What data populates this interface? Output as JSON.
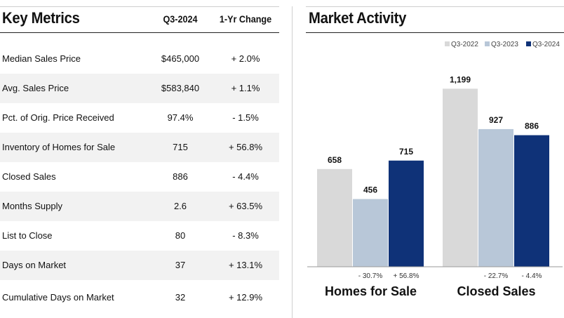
{
  "metrics": {
    "title": "Key Metrics",
    "col_period": "Q3-2024",
    "col_change": "1-Yr Change",
    "rows": [
      {
        "label": "Median Sales Price",
        "value": "$465,000",
        "change": "+ 2.0%"
      },
      {
        "label": "Avg. Sales Price",
        "value": "$583,840",
        "change": "+ 1.1%"
      },
      {
        "label": "Pct. of Orig. Price Received",
        "value": "97.4%",
        "change": "- 1.5%"
      },
      {
        "label": "Inventory of Homes for Sale",
        "value": "715",
        "change": "+ 56.8%"
      },
      {
        "label": "Closed Sales",
        "value": "886",
        "change": "- 4.4%"
      },
      {
        "label": "Months Supply",
        "value": "2.6",
        "change": "+ 63.5%"
      },
      {
        "label": "List to Close",
        "value": "80",
        "change": "- 8.3%"
      },
      {
        "label": "Days on Market",
        "value": "37",
        "change": "+ 13.1%"
      },
      {
        "label": "Cumulative Days on Market",
        "value": "32",
        "change": "+ 12.9%"
      }
    ]
  },
  "chart_data": {
    "type": "bar",
    "title": "Market Activity",
    "categories": [
      "Homes for Sale",
      "Closed Sales"
    ],
    "series": [
      {
        "name": "Q3-2022",
        "values": [
          658,
          1199
        ],
        "color": "#d9d9d9"
      },
      {
        "name": "Q3-2023",
        "values": [
          456,
          927
        ],
        "color": "#b8c7d8"
      },
      {
        "name": "Q3-2024",
        "values": [
          715,
          886
        ],
        "color": "#0f3278"
      }
    ],
    "value_labels": [
      [
        "658",
        "1,199"
      ],
      [
        "456",
        "927"
      ],
      [
        "715",
        "886"
      ]
    ],
    "change_labels": [
      [
        "",
        ""
      ],
      [
        "- 30.7%",
        "- 22.7%"
      ],
      [
        "+ 56.8%",
        "- 4.4%"
      ]
    ],
    "ylim": [
      0,
      1300
    ],
    "legend": "top-right",
    "grid": false
  }
}
